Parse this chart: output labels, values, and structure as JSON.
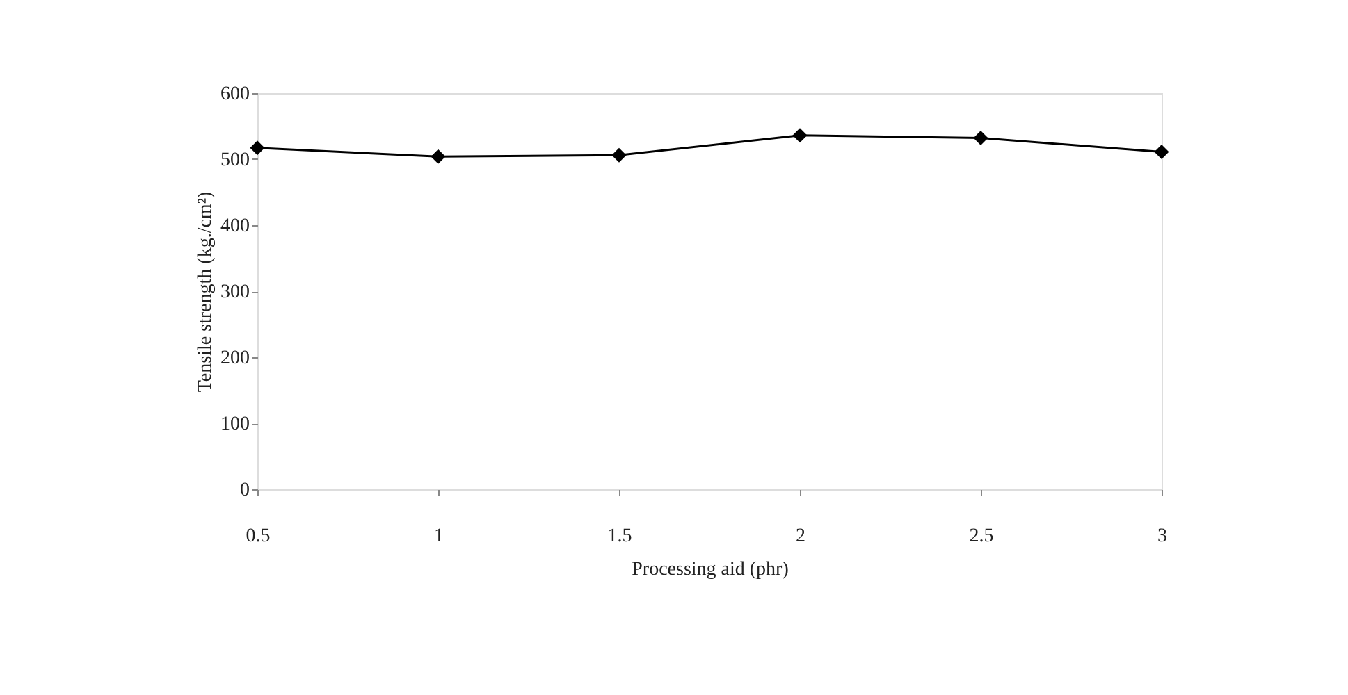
{
  "chart_data": {
    "type": "line",
    "xlabel": "Processing aid (phr)",
    "ylabel": "Tensile strength (kg./cm²)",
    "categories": [
      "0.5",
      "1",
      "1.5",
      "2",
      "2.5",
      "3"
    ],
    "series": [
      {
        "color": "#000000",
        "values": [
          517,
          504,
          506,
          536,
          532,
          511
        ]
      }
    ],
    "ylim": [
      0,
      600
    ],
    "yticks": [
      0,
      100,
      200,
      300,
      400,
      500,
      600
    ],
    "grid": false,
    "legend": false,
    "marker": "diamond",
    "line_style": "solid"
  }
}
